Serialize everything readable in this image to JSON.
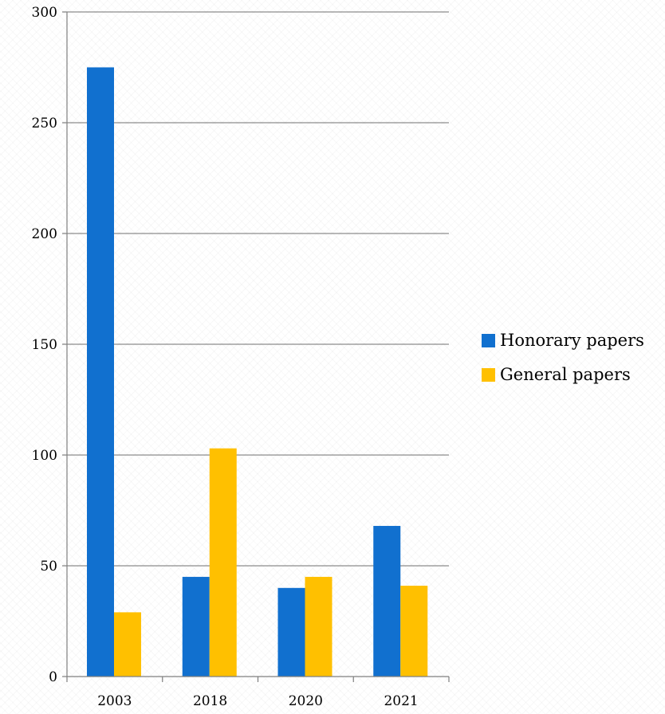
{
  "chart_data": {
    "type": "bar",
    "categories": [
      "2003",
      "2018",
      "2020",
      "2021"
    ],
    "series": [
      {
        "name": "Honorary papers",
        "values": [
          275,
          45,
          40,
          68
        ],
        "color": "#1170CF"
      },
      {
        "name": "General papers",
        "values": [
          29,
          103,
          45,
          41
        ],
        "color": "#FFC000"
      }
    ],
    "yticks": [
      "0",
      "50",
      "100",
      "150",
      "200",
      "250",
      "300"
    ],
    "ylim": [
      0,
      300
    ],
    "grid": true,
    "legend_position": "right"
  }
}
